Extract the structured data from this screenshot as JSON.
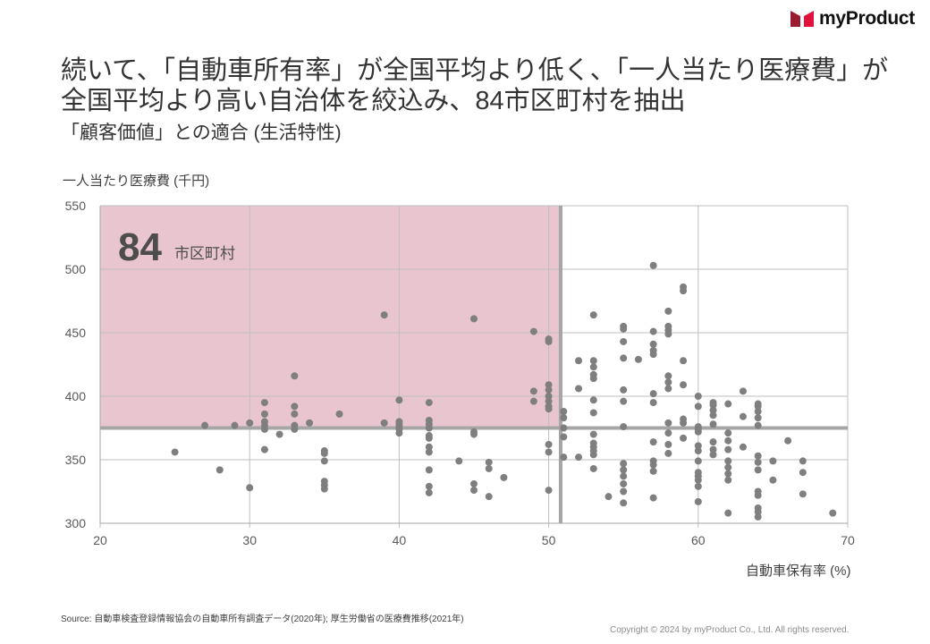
{
  "brand": {
    "name": "myProduct",
    "color": "#c8102e"
  },
  "title_lines": [
    "続いて、「自動車所有率」が全国平均より低く、「一人当たり医療費」が",
    "全国平均より高い自治体を絞込み、84市区町村を抽出"
  ],
  "subtitle": "「顧客価値」との適合 (生活特性)",
  "source": "Source: 自動車検査登録情報協会の自動車所有調査データ(2020年); 厚生労働省の医療費推移(2021年)",
  "copyright": "Copyright © 2024 by myProduct Co., Ltd.  All rights reserved.",
  "chart_data": {
    "type": "scatter",
    "title": "",
    "xlabel": "自動車保有率 (%)",
    "ylabel": "一人当たり医療費 (千円)",
    "xlim": [
      20,
      70
    ],
    "ylim": [
      300,
      550
    ],
    "xticks": [
      "20",
      "30",
      "40",
      "50",
      "60",
      "70"
    ],
    "yticks": [
      "300",
      "350",
      "400",
      "450",
      "500",
      "550"
    ],
    "grid": true,
    "thresholds": {
      "x": 50.8,
      "y": 375
    },
    "highlight": {
      "count": "84",
      "unit": "市区町村",
      "color": "#e8c5cf"
    },
    "colors": {
      "dot": "#7f7f7f",
      "threshold": "#a6a6a6",
      "grid": "#bfbfbf"
    },
    "points": [
      [
        25,
        356
      ],
      [
        27,
        377
      ],
      [
        28,
        342
      ],
      [
        29,
        377
      ],
      [
        30,
        379
      ],
      [
        30,
        328
      ],
      [
        31,
        395
      ],
      [
        31,
        386
      ],
      [
        31,
        380
      ],
      [
        31,
        377
      ],
      [
        31,
        374
      ],
      [
        31,
        358
      ],
      [
        32,
        370
      ],
      [
        33,
        416
      ],
      [
        33,
        392
      ],
      [
        33,
        386
      ],
      [
        33,
        377
      ],
      [
        33,
        374
      ],
      [
        34,
        379
      ],
      [
        35,
        357
      ],
      [
        35,
        355
      ],
      [
        35,
        349
      ],
      [
        35,
        333
      ],
      [
        35,
        330
      ],
      [
        35,
        327
      ],
      [
        36,
        386
      ],
      [
        39,
        464
      ],
      [
        39,
        379
      ],
      [
        40,
        397
      ],
      [
        40,
        380
      ],
      [
        40,
        378
      ],
      [
        40,
        376
      ],
      [
        40,
        374
      ],
      [
        40,
        371
      ],
      [
        42,
        395
      ],
      [
        42,
        381
      ],
      [
        42,
        378
      ],
      [
        42,
        375
      ],
      [
        42,
        369
      ],
      [
        42,
        367
      ],
      [
        42,
        360
      ],
      [
        42,
        356
      ],
      [
        42,
        342
      ],
      [
        42,
        329
      ],
      [
        42,
        324
      ],
      [
        44,
        349
      ],
      [
        45,
        461
      ],
      [
        45,
        372
      ],
      [
        45,
        370
      ],
      [
        45,
        331
      ],
      [
        45,
        326
      ],
      [
        46,
        348
      ],
      [
        46,
        343
      ],
      [
        46,
        321
      ],
      [
        47,
        336
      ],
      [
        49,
        451
      ],
      [
        49,
        404
      ],
      [
        49,
        396
      ],
      [
        50,
        445
      ],
      [
        50,
        443
      ],
      [
        50,
        409
      ],
      [
        50,
        405
      ],
      [
        50,
        400
      ],
      [
        50,
        396
      ],
      [
        50,
        392
      ],
      [
        50,
        390
      ],
      [
        50,
        362
      ],
      [
        50,
        356
      ],
      [
        50,
        326
      ],
      [
        51,
        388
      ],
      [
        51,
        383
      ],
      [
        51,
        375
      ],
      [
        51,
        368
      ],
      [
        51,
        352
      ],
      [
        52,
        428
      ],
      [
        52,
        406
      ],
      [
        52,
        352
      ],
      [
        53,
        464
      ],
      [
        53,
        428
      ],
      [
        53,
        423
      ],
      [
        53,
        417
      ],
      [
        53,
        414
      ],
      [
        53,
        397
      ],
      [
        53,
        387
      ],
      [
        53,
        370
      ],
      [
        53,
        363
      ],
      [
        53,
        360
      ],
      [
        53,
        357
      ],
      [
        53,
        354
      ],
      [
        53,
        343
      ],
      [
        54,
        321
      ],
      [
        55,
        455
      ],
      [
        55,
        453
      ],
      [
        55,
        443
      ],
      [
        55,
        430
      ],
      [
        55,
        405
      ],
      [
        55,
        396
      ],
      [
        55,
        376
      ],
      [
        55,
        347
      ],
      [
        55,
        342
      ],
      [
        55,
        337
      ],
      [
        55,
        331
      ],
      [
        55,
        325
      ],
      [
        55,
        316
      ],
      [
        56,
        429
      ],
      [
        57,
        503
      ],
      [
        57,
        451
      ],
      [
        57,
        441
      ],
      [
        57,
        436
      ],
      [
        57,
        433
      ],
      [
        57,
        402
      ],
      [
        57,
        395
      ],
      [
        57,
        364
      ],
      [
        57,
        349
      ],
      [
        57,
        346
      ],
      [
        57,
        341
      ],
      [
        57,
        320
      ],
      [
        58,
        467
      ],
      [
        58,
        455
      ],
      [
        58,
        452
      ],
      [
        58,
        449
      ],
      [
        58,
        416
      ],
      [
        58,
        411
      ],
      [
        58,
        406
      ],
      [
        58,
        379
      ],
      [
        58,
        371
      ],
      [
        58,
        362
      ],
      [
        58,
        355
      ],
      [
        59,
        486
      ],
      [
        59,
        483
      ],
      [
        59,
        428
      ],
      [
        59,
        409
      ],
      [
        59,
        382
      ],
      [
        59,
        379
      ],
      [
        59,
        367
      ],
      [
        60,
        400
      ],
      [
        60,
        392
      ],
      [
        60,
        376
      ],
      [
        60,
        374
      ],
      [
        60,
        372
      ],
      [
        60,
        361
      ],
      [
        60,
        357
      ],
      [
        60,
        349
      ],
      [
        60,
        340
      ],
      [
        60,
        337
      ],
      [
        60,
        334
      ],
      [
        60,
        329
      ],
      [
        60,
        317
      ],
      [
        61,
        395
      ],
      [
        61,
        393
      ],
      [
        61,
        389
      ],
      [
        61,
        385
      ],
      [
        61,
        378
      ],
      [
        61,
        364
      ],
      [
        61,
        358
      ],
      [
        61,
        354
      ],
      [
        62,
        394
      ],
      [
        62,
        371
      ],
      [
        62,
        365
      ],
      [
        62,
        358
      ],
      [
        62,
        349
      ],
      [
        62,
        344
      ],
      [
        62,
        339
      ],
      [
        62,
        334
      ],
      [
        62,
        308
      ],
      [
        63,
        404
      ],
      [
        63,
        384
      ],
      [
        63,
        360
      ],
      [
        64,
        394
      ],
      [
        64,
        392
      ],
      [
        64,
        388
      ],
      [
        64,
        383
      ],
      [
        64,
        377
      ],
      [
        64,
        353
      ],
      [
        64,
        348
      ],
      [
        64,
        342
      ],
      [
        64,
        325
      ],
      [
        64,
        322
      ],
      [
        64,
        312
      ],
      [
        64,
        309
      ],
      [
        64,
        305
      ],
      [
        65,
        349
      ],
      [
        65,
        334
      ],
      [
        66,
        365
      ],
      [
        67,
        349
      ],
      [
        67,
        340
      ],
      [
        67,
        323
      ],
      [
        69,
        308
      ]
    ]
  }
}
